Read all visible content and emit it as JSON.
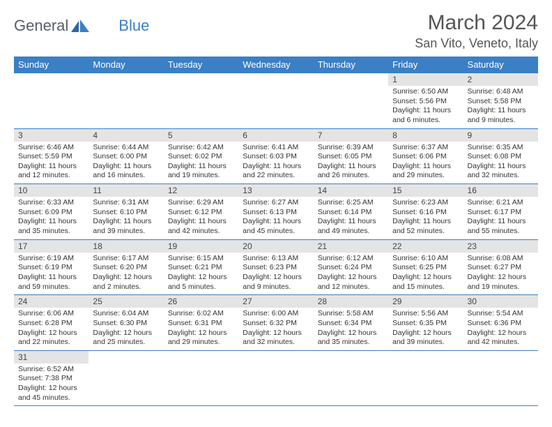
{
  "logo": {
    "part1": "General",
    "part2": "Blue"
  },
  "title": "March 2024",
  "location": "San Vito, Veneto, Italy",
  "colors": {
    "header_bg": "#3b7fc4",
    "header_fg": "#ffffff",
    "daynum_bg": "#e4e4e4",
    "border": "#3b7fc4"
  },
  "weekday_labels": [
    "Sunday",
    "Monday",
    "Tuesday",
    "Wednesday",
    "Thursday",
    "Friday",
    "Saturday"
  ],
  "leading_blanks": 5,
  "days": [
    {
      "n": "1",
      "sunrise": "Sunrise: 6:50 AM",
      "sunset": "Sunset: 5:56 PM",
      "daylight": "Daylight: 11 hours and 6 minutes."
    },
    {
      "n": "2",
      "sunrise": "Sunrise: 6:48 AM",
      "sunset": "Sunset: 5:58 PM",
      "daylight": "Daylight: 11 hours and 9 minutes."
    },
    {
      "n": "3",
      "sunrise": "Sunrise: 6:46 AM",
      "sunset": "Sunset: 5:59 PM",
      "daylight": "Daylight: 11 hours and 12 minutes."
    },
    {
      "n": "4",
      "sunrise": "Sunrise: 6:44 AM",
      "sunset": "Sunset: 6:00 PM",
      "daylight": "Daylight: 11 hours and 16 minutes."
    },
    {
      "n": "5",
      "sunrise": "Sunrise: 6:42 AM",
      "sunset": "Sunset: 6:02 PM",
      "daylight": "Daylight: 11 hours and 19 minutes."
    },
    {
      "n": "6",
      "sunrise": "Sunrise: 6:41 AM",
      "sunset": "Sunset: 6:03 PM",
      "daylight": "Daylight: 11 hours and 22 minutes."
    },
    {
      "n": "7",
      "sunrise": "Sunrise: 6:39 AM",
      "sunset": "Sunset: 6:05 PM",
      "daylight": "Daylight: 11 hours and 26 minutes."
    },
    {
      "n": "8",
      "sunrise": "Sunrise: 6:37 AM",
      "sunset": "Sunset: 6:06 PM",
      "daylight": "Daylight: 11 hours and 29 minutes."
    },
    {
      "n": "9",
      "sunrise": "Sunrise: 6:35 AM",
      "sunset": "Sunset: 6:08 PM",
      "daylight": "Daylight: 11 hours and 32 minutes."
    },
    {
      "n": "10",
      "sunrise": "Sunrise: 6:33 AM",
      "sunset": "Sunset: 6:09 PM",
      "daylight": "Daylight: 11 hours and 35 minutes."
    },
    {
      "n": "11",
      "sunrise": "Sunrise: 6:31 AM",
      "sunset": "Sunset: 6:10 PM",
      "daylight": "Daylight: 11 hours and 39 minutes."
    },
    {
      "n": "12",
      "sunrise": "Sunrise: 6:29 AM",
      "sunset": "Sunset: 6:12 PM",
      "daylight": "Daylight: 11 hours and 42 minutes."
    },
    {
      "n": "13",
      "sunrise": "Sunrise: 6:27 AM",
      "sunset": "Sunset: 6:13 PM",
      "daylight": "Daylight: 11 hours and 45 minutes."
    },
    {
      "n": "14",
      "sunrise": "Sunrise: 6:25 AM",
      "sunset": "Sunset: 6:14 PM",
      "daylight": "Daylight: 11 hours and 49 minutes."
    },
    {
      "n": "15",
      "sunrise": "Sunrise: 6:23 AM",
      "sunset": "Sunset: 6:16 PM",
      "daylight": "Daylight: 11 hours and 52 minutes."
    },
    {
      "n": "16",
      "sunrise": "Sunrise: 6:21 AM",
      "sunset": "Sunset: 6:17 PM",
      "daylight": "Daylight: 11 hours and 55 minutes."
    },
    {
      "n": "17",
      "sunrise": "Sunrise: 6:19 AM",
      "sunset": "Sunset: 6:19 PM",
      "daylight": "Daylight: 11 hours and 59 minutes."
    },
    {
      "n": "18",
      "sunrise": "Sunrise: 6:17 AM",
      "sunset": "Sunset: 6:20 PM",
      "daylight": "Daylight: 12 hours and 2 minutes."
    },
    {
      "n": "19",
      "sunrise": "Sunrise: 6:15 AM",
      "sunset": "Sunset: 6:21 PM",
      "daylight": "Daylight: 12 hours and 5 minutes."
    },
    {
      "n": "20",
      "sunrise": "Sunrise: 6:13 AM",
      "sunset": "Sunset: 6:23 PM",
      "daylight": "Daylight: 12 hours and 9 minutes."
    },
    {
      "n": "21",
      "sunrise": "Sunrise: 6:12 AM",
      "sunset": "Sunset: 6:24 PM",
      "daylight": "Daylight: 12 hours and 12 minutes."
    },
    {
      "n": "22",
      "sunrise": "Sunrise: 6:10 AM",
      "sunset": "Sunset: 6:25 PM",
      "daylight": "Daylight: 12 hours and 15 minutes."
    },
    {
      "n": "23",
      "sunrise": "Sunrise: 6:08 AM",
      "sunset": "Sunset: 6:27 PM",
      "daylight": "Daylight: 12 hours and 19 minutes."
    },
    {
      "n": "24",
      "sunrise": "Sunrise: 6:06 AM",
      "sunset": "Sunset: 6:28 PM",
      "daylight": "Daylight: 12 hours and 22 minutes."
    },
    {
      "n": "25",
      "sunrise": "Sunrise: 6:04 AM",
      "sunset": "Sunset: 6:30 PM",
      "daylight": "Daylight: 12 hours and 25 minutes."
    },
    {
      "n": "26",
      "sunrise": "Sunrise: 6:02 AM",
      "sunset": "Sunset: 6:31 PM",
      "daylight": "Daylight: 12 hours and 29 minutes."
    },
    {
      "n": "27",
      "sunrise": "Sunrise: 6:00 AM",
      "sunset": "Sunset: 6:32 PM",
      "daylight": "Daylight: 12 hours and 32 minutes."
    },
    {
      "n": "28",
      "sunrise": "Sunrise: 5:58 AM",
      "sunset": "Sunset: 6:34 PM",
      "daylight": "Daylight: 12 hours and 35 minutes."
    },
    {
      "n": "29",
      "sunrise": "Sunrise: 5:56 AM",
      "sunset": "Sunset: 6:35 PM",
      "daylight": "Daylight: 12 hours and 39 minutes."
    },
    {
      "n": "30",
      "sunrise": "Sunrise: 5:54 AM",
      "sunset": "Sunset: 6:36 PM",
      "daylight": "Daylight: 12 hours and 42 minutes."
    },
    {
      "n": "31",
      "sunrise": "Sunrise: 6:52 AM",
      "sunset": "Sunset: 7:38 PM",
      "daylight": "Daylight: 12 hours and 45 minutes."
    }
  ]
}
